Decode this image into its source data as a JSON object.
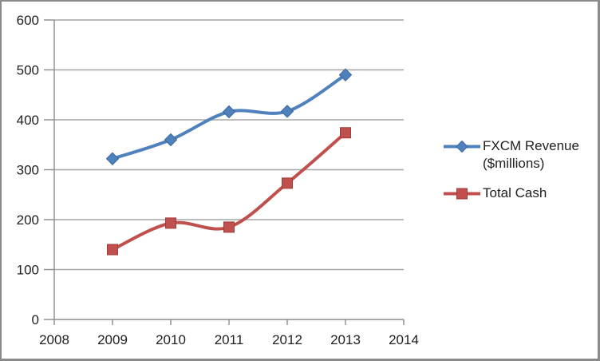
{
  "window": {
    "background_color": "#ffffff",
    "border_color": "#8a8a8a"
  },
  "chart_data": {
    "type": "line",
    "title": "",
    "xlabel": "",
    "ylabel": "",
    "x": [
      2009,
      2010,
      2011,
      2012,
      2013
    ],
    "series": [
      {
        "name": "FXCM Revenue ($millions)",
        "values": [
          322,
          360,
          416,
          417,
          490
        ],
        "color": "#4F81BD",
        "marker_edge_color": "#3A679C",
        "marker": "diamond"
      },
      {
        "name": "Total Cash",
        "values": [
          140,
          193,
          185,
          273,
          374
        ],
        "color": "#C0504D",
        "marker_edge_color": "#A13C39",
        "marker": "square"
      }
    ],
    "xlim": [
      2008,
      2014
    ],
    "ylim": [
      0,
      600
    ],
    "x_ticks": [
      2008,
      2009,
      2010,
      2011,
      2012,
      2013,
      2014
    ],
    "y_ticks": [
      0,
      100,
      200,
      300,
      400,
      500,
      600
    ],
    "smooth_lines": true,
    "grid": "horizontal",
    "gridline_color": "#A6A6A6",
    "axis_color": "#8C8C8C",
    "tick_label_color": "#1f1f1f",
    "legend_position": "right"
  },
  "legend": {
    "marker_names": [
      "blue-diamond-series-icon",
      "red-square-series-icon"
    ]
  }
}
